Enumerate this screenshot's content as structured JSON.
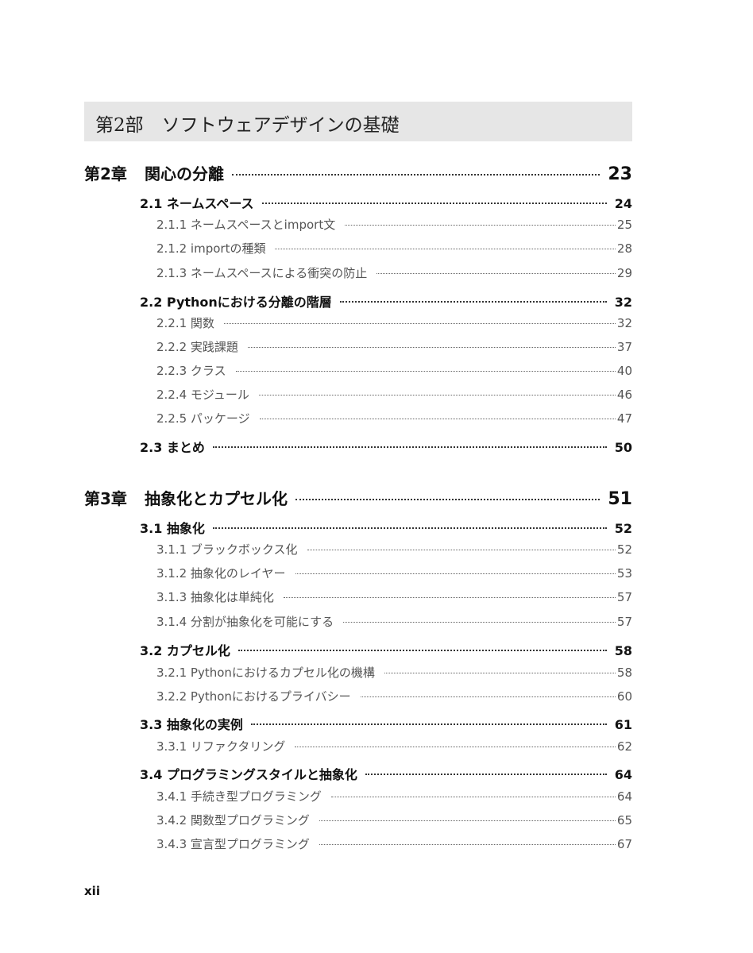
{
  "part_title": "第2部　ソフトウェアデザインの基礎",
  "entries": [
    {
      "type": "ch",
      "label": "第2章",
      "title": "関心の分離",
      "page": "23"
    },
    {
      "type": "sec",
      "title": "2.1 ネームスペース",
      "page": "24"
    },
    {
      "type": "sub",
      "title": "2.1.1 ネームスペースとimport文",
      "page": "25"
    },
    {
      "type": "sub",
      "title": "2.1.2 importの種類",
      "page": "28"
    },
    {
      "type": "sub",
      "title": "2.1.3 ネームスペースによる衝突の防止",
      "page": "29"
    },
    {
      "type": "sec",
      "title": "2.2 Pythonにおける分離の階層",
      "page": "32"
    },
    {
      "type": "sub",
      "title": "2.2.1 関数",
      "page": "32"
    },
    {
      "type": "sub",
      "title": "2.2.2 実践課題",
      "page": "37"
    },
    {
      "type": "sub",
      "title": "2.2.3 クラス",
      "page": "40"
    },
    {
      "type": "sub",
      "title": "2.2.4 モジュール",
      "page": "46"
    },
    {
      "type": "sub",
      "title": "2.2.5 パッケージ",
      "page": "47"
    },
    {
      "type": "sec",
      "title": "2.3 まとめ",
      "page": "50"
    },
    {
      "type": "ch",
      "label": "第3章",
      "title": "抽象化とカプセル化",
      "page": "51"
    },
    {
      "type": "sec",
      "title": "3.1 抽象化",
      "page": "52"
    },
    {
      "type": "sub",
      "title": "3.1.1 ブラックボックス化",
      "page": "52"
    },
    {
      "type": "sub",
      "title": "3.1.2 抽象化のレイヤー",
      "page": "53"
    },
    {
      "type": "sub",
      "title": "3.1.3 抽象化は単純化",
      "page": "57"
    },
    {
      "type": "sub",
      "title": "3.1.4 分割が抽象化を可能にする",
      "page": "57"
    },
    {
      "type": "sec",
      "title": "3.2 カプセル化",
      "page": "58"
    },
    {
      "type": "sub",
      "title": "3.2.1 Pythonにおけるカプセル化の機構",
      "page": "58"
    },
    {
      "type": "sub",
      "title": "3.2.2 Pythonにおけるプライバシー",
      "page": "60"
    },
    {
      "type": "sec",
      "title": "3.3 抽象化の実例",
      "page": "61"
    },
    {
      "type": "sub",
      "title": "3.3.1 リファクタリング",
      "page": "62"
    },
    {
      "type": "sec",
      "title": "3.4 プログラミングスタイルと抽象化",
      "page": "64"
    },
    {
      "type": "sub",
      "title": "3.4.1 手続き型プログラミング",
      "page": "64"
    },
    {
      "type": "sub",
      "title": "3.4.2 関数型プログラミング",
      "page": "65"
    },
    {
      "type": "sub",
      "title": "3.4.3 宣言型プログラミング",
      "page": "67"
    }
  ],
  "footer_page": "xii"
}
